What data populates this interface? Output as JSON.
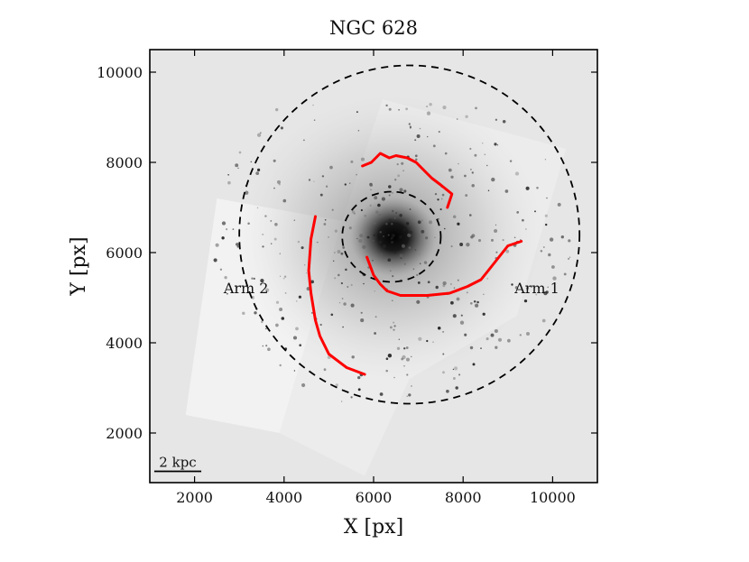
{
  "chart_data": {
    "type": "scatter",
    "title": "NGC 628",
    "xlabel": "X [px]",
    "ylabel": "Y [px]",
    "xlim": [
      1000,
      11000
    ],
    "ylim": [
      900,
      10500
    ],
    "xticks": [
      2000,
      4000,
      6000,
      8000,
      10000
    ],
    "yticks": [
      2000,
      4000,
      6000,
      8000,
      10000
    ],
    "grid": false,
    "background_color": "#e6e6e6",
    "arm_color": "#ff0000",
    "scale_bar": {
      "label": "2 kpc",
      "x": [
        1100,
        2150
      ],
      "y": 1150
    },
    "annotations": [
      {
        "text": "Arm 1",
        "x": 9650,
        "y": 5100
      },
      {
        "text": "Arm 2",
        "x": 3150,
        "y": 5100
      }
    ],
    "ellipses": [
      {
        "name": "outer",
        "center": [
          6800,
          6400
        ],
        "rx": 3800,
        "ry": 3750,
        "style": "dashed"
      },
      {
        "name": "inner",
        "center": [
          6400,
          6350
        ],
        "rx": 1100,
        "ry": 1000,
        "style": "dashed"
      }
    ],
    "arms": [
      {
        "label": "Arm 1",
        "points": [
          [
            5750,
            7920
          ],
          [
            5950,
            8000
          ],
          [
            6150,
            8200
          ],
          [
            6350,
            8100
          ],
          [
            6500,
            8150
          ],
          [
            6750,
            8100
          ],
          [
            6950,
            8000
          ],
          [
            7150,
            7800
          ],
          [
            7300,
            7650
          ],
          [
            7500,
            7500
          ],
          [
            7750,
            7300
          ],
          [
            7650,
            7000
          ]
        ]
      },
      {
        "label": "Arm 1",
        "points": [
          [
            5850,
            5900
          ],
          [
            6000,
            5500
          ],
          [
            6150,
            5300
          ],
          [
            6300,
            5150
          ],
          [
            6600,
            5050
          ],
          [
            7200,
            5050
          ],
          [
            7700,
            5100
          ],
          [
            8100,
            5250
          ],
          [
            8400,
            5400
          ],
          [
            8600,
            5650
          ],
          [
            8800,
            5900
          ],
          [
            9000,
            6150
          ],
          [
            9300,
            6250
          ]
        ]
      },
      {
        "label": "Arm 2",
        "points": [
          [
            4700,
            6800
          ],
          [
            4600,
            6300
          ],
          [
            4550,
            5600
          ],
          [
            4600,
            5100
          ],
          [
            4700,
            4500
          ],
          [
            4800,
            4150
          ],
          [
            5000,
            3750
          ],
          [
            5400,
            3450
          ],
          [
            5800,
            3300
          ]
        ]
      }
    ],
    "image_tiles": [
      {
        "name": "tile-left",
        "corners": [
          [
            1800,
            2400
          ],
          [
            3900,
            2000
          ],
          [
            5300,
            6700
          ],
          [
            2500,
            7200
          ]
        ]
      },
      {
        "name": "tile-right",
        "corners": [
          [
            5300,
            6700
          ],
          [
            6200,
            9400
          ],
          [
            10300,
            8300
          ],
          [
            9200,
            4600
          ]
        ]
      },
      {
        "name": "tile-bottom",
        "corners": [
          [
            3900,
            2000
          ],
          [
            5800,
            1050
          ],
          [
            6800,
            3200
          ],
          [
            9200,
            4600
          ],
          [
            5300,
            6700
          ]
        ]
      }
    ]
  }
}
